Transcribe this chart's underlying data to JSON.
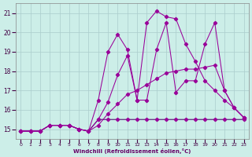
{
  "xlabel": "Windchill (Refroidissement éolien,°C)",
  "bg_color": "#cceee8",
  "grid_color": "#aacccc",
  "line_color": "#990099",
  "line_color2": "#440066",
  "xlim": [
    -0.5,
    23.5
  ],
  "ylim": [
    14.5,
    21.5
  ],
  "xticks": [
    0,
    1,
    2,
    3,
    4,
    5,
    6,
    7,
    8,
    9,
    10,
    11,
    12,
    13,
    14,
    15,
    16,
    17,
    18,
    19,
    20,
    21,
    22,
    23
  ],
  "yticks": [
    15,
    16,
    17,
    18,
    19,
    20,
    21
  ],
  "s_flat_x": [
    0,
    1,
    2,
    3,
    4,
    5,
    6,
    7,
    8,
    9,
    10,
    11,
    12,
    13,
    14,
    15,
    16,
    17,
    18,
    19,
    20,
    21,
    22,
    23
  ],
  "s_flat_y": [
    14.9,
    14.9,
    14.9,
    15.2,
    15.2,
    15.2,
    15.0,
    14.9,
    15.5,
    15.5,
    15.5,
    15.5,
    15.5,
    15.5,
    15.5,
    15.5,
    15.5,
    15.5,
    15.5,
    15.5,
    15.5,
    15.5,
    15.5,
    15.5
  ],
  "s_grad_x": [
    0,
    1,
    2,
    3,
    4,
    5,
    6,
    7,
    8,
    9,
    10,
    11,
    12,
    13,
    14,
    15,
    16,
    17,
    18,
    19,
    20,
    21,
    22,
    23
  ],
  "s_grad_y": [
    14.9,
    14.9,
    14.9,
    15.2,
    15.2,
    15.2,
    15.0,
    14.9,
    15.2,
    15.8,
    16.3,
    16.8,
    17.0,
    17.3,
    17.6,
    17.9,
    18.0,
    18.1,
    18.1,
    18.2,
    18.3,
    17.0,
    16.1,
    15.6
  ],
  "s_wave_x": [
    0,
    1,
    2,
    3,
    4,
    5,
    6,
    7,
    8,
    9,
    10,
    11,
    12,
    13,
    14,
    15,
    16,
    17,
    18,
    19,
    20,
    21,
    22,
    23
  ],
  "s_wave_y": [
    14.9,
    14.9,
    14.9,
    15.2,
    15.2,
    15.2,
    15.0,
    14.9,
    15.5,
    16.4,
    17.8,
    18.8,
    16.5,
    16.5,
    19.1,
    20.5,
    16.9,
    17.5,
    17.5,
    19.4,
    20.5,
    17.0,
    16.1,
    15.6
  ],
  "s_top_x": [
    0,
    1,
    2,
    3,
    4,
    5,
    6,
    7,
    8,
    9,
    10,
    11,
    12,
    13,
    14,
    15,
    16,
    17,
    18,
    19,
    20,
    21,
    22,
    23
  ],
  "s_top_y": [
    14.9,
    14.9,
    14.9,
    15.2,
    15.2,
    15.2,
    15.0,
    14.9,
    16.5,
    19.0,
    19.9,
    19.1,
    16.5,
    20.5,
    21.1,
    20.8,
    20.7,
    19.4,
    18.5,
    17.5,
    17.0,
    16.5,
    16.1,
    15.6
  ]
}
